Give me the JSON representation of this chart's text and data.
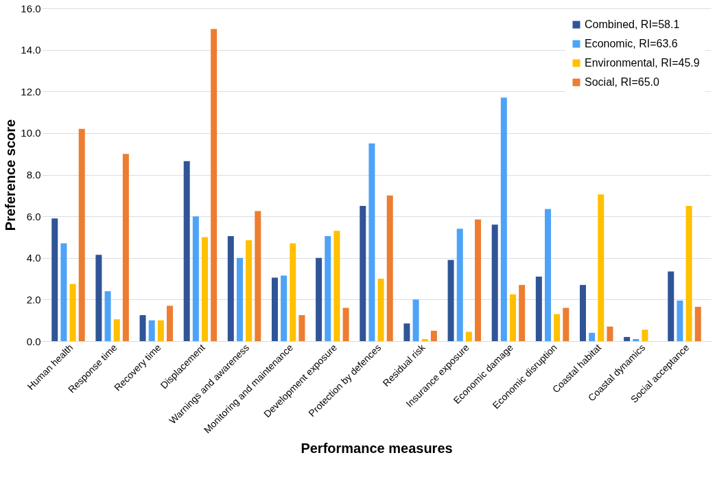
{
  "chart_data": {
    "type": "bar",
    "xlabel": "Performance measures",
    "ylabel": "Preference score",
    "categories": [
      "Human health",
      "Response time",
      "Recovery time",
      "Displacement",
      "Warnings and awareness",
      "Monitoring and maintenance",
      "Development exposure",
      "Protection by defences",
      "Residual risk",
      "Insurance exposure",
      "Economic damage",
      "Economic disruption",
      "Coastal habitat",
      "Coastal dynamics",
      "Social acceptance"
    ],
    "series": [
      {
        "name": "Combined, RI=58.1",
        "color": "#2f5597",
        "values": [
          5.9,
          4.15,
          1.25,
          8.65,
          5.05,
          3.05,
          4.0,
          6.5,
          0.85,
          3.9,
          5.6,
          3.1,
          2.7,
          0.2,
          3.35
        ]
      },
      {
        "name": "Economic, RI=63.6",
        "color": "#4da3f7",
        "values": [
          4.7,
          2.4,
          1.0,
          6.0,
          4.0,
          3.15,
          5.05,
          9.5,
          2.0,
          5.4,
          11.7,
          6.35,
          0.4,
          0.1,
          1.95
        ]
      },
      {
        "name": "Environmental, RI=45.9",
        "color": "#ffc000",
        "values": [
          2.75,
          1.05,
          1.0,
          5.0,
          4.85,
          4.7,
          5.3,
          3.0,
          0.1,
          0.45,
          2.25,
          1.3,
          7.05,
          0.55,
          6.5
        ]
      },
      {
        "name": "Social, RI=65.0",
        "color": "#ed7d31",
        "values": [
          10.2,
          9.0,
          1.7,
          15.0,
          6.25,
          1.25,
          1.6,
          7.0,
          0.5,
          5.85,
          2.7,
          1.6,
          0.7,
          0.0,
          1.65
        ]
      }
    ],
    "ylim": [
      0,
      16
    ],
    "yticks": [
      {
        "value": 0,
        "label": "0.0"
      },
      {
        "value": 2,
        "label": "2.0"
      },
      {
        "value": 4,
        "label": "4.0"
      },
      {
        "value": 6,
        "label": "6.0"
      },
      {
        "value": 8,
        "label": "8.0"
      },
      {
        "value": 10,
        "label": "10.0"
      },
      {
        "value": 12,
        "label": "12.0"
      },
      {
        "value": 14,
        "label": "14.0"
      },
      {
        "value": 16,
        "label": "16.0"
      }
    ],
    "grid": "y",
    "legend": "top right"
  }
}
